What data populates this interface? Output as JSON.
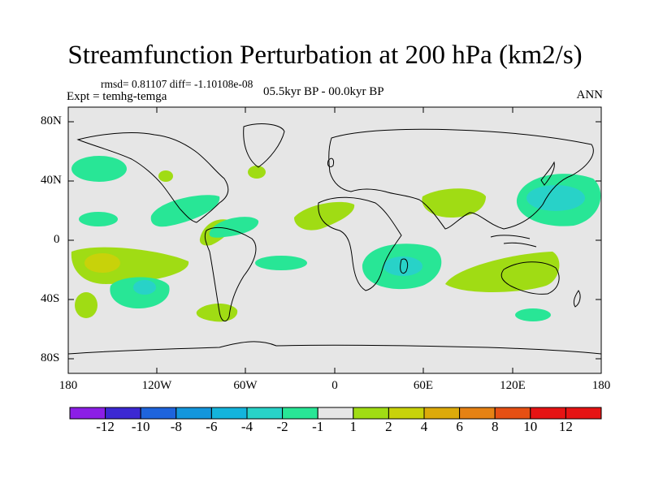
{
  "map": {
    "title": "Streamfunction Perturbation at 200 hPa (km2/s)",
    "stats_text": "rmsd= 0.81107 diff= -1.10108e-08",
    "experiment_text": "Expt = temhg-temga",
    "period_text": "05.5kyr BP - 00.0kyr BP",
    "season_text": "ANN",
    "lat_ticks": [
      "80N",
      "40N",
      "0",
      "40S",
      "80S"
    ],
    "lon_ticks": [
      "180",
      "120W",
      "60W",
      "0",
      "60E",
      "120E",
      "180"
    ],
    "background_color": "#e6e6e6"
  },
  "colorbar": {
    "labels": [
      "-12",
      "-10",
      "-8",
      "-6",
      "-4",
      "-2",
      "-1",
      "1",
      "2",
      "4",
      "6",
      "8",
      "10",
      "12"
    ],
    "colors": [
      "#8c1ee6",
      "#3c28d2",
      "#1e64dc",
      "#1496dc",
      "#14b4dc",
      "#28d2c8",
      "#28e696",
      "#e6e6e6",
      "#a0dc14",
      "#c8d20a",
      "#dcaa0a",
      "#e68214",
      "#e65014",
      "#e61414"
    ]
  }
}
